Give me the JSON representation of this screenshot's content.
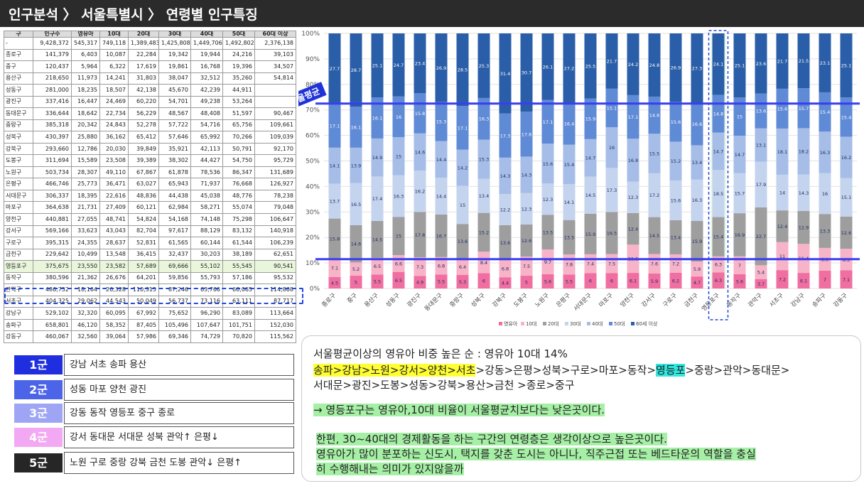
{
  "title": "인구분석 〉 서울특별시 〉 연령별 인구특징",
  "table": {
    "headers": [
      "구",
      "인구수",
      "영유아",
      "10대",
      "20대",
      "30대",
      "40대",
      "50대",
      "60대 이상"
    ],
    "rows": [
      [
        "-",
        "9,428,372",
        "545,317",
        "749,118",
        "1,389,483",
        "1,425,808",
        "1,449,706",
        "1,492,802",
        "2,376,138"
      ],
      [
        "종로구",
        "141,379",
        "6,403",
        "10,087",
        "22,284",
        "19,342",
        "19,944",
        "24,216",
        "39,103"
      ],
      [
        "중구",
        "120,437",
        "5,964",
        "6,322",
        "17,619",
        "19,861",
        "16,768",
        "19,396",
        "34,507"
      ],
      [
        "용산구",
        "218,650",
        "11,973",
        "14,241",
        "31,803",
        "38,047",
        "32,512",
        "35,260",
        "54,814"
      ],
      [
        "성동구",
        "281,000",
        "18,235",
        "18,507",
        "42,138",
        "45,670",
        "42,239",
        "44,911",
        ""
      ],
      [
        "광진구",
        "337,416",
        "16,447",
        "24,469",
        "60,220",
        "54,701",
        "49,238",
        "53,264",
        ""
      ],
      [
        "동대문구",
        "336,644",
        "18,642",
        "22,734",
        "56,229",
        "48,567",
        "48,408",
        "51,597",
        "90,467"
      ],
      [
        "중랑구",
        "385,318",
        "20,342",
        "24,843",
        "52,278",
        "57,722",
        "54,716",
        "65,756",
        "109,661"
      ],
      [
        "성북구",
        "430,397",
        "25,880",
        "36,162",
        "65,412",
        "57,646",
        "65,992",
        "70,266",
        "109,039"
      ],
      [
        "강북구",
        "293,660",
        "12,786",
        "20,030",
        "39,849",
        "35,921",
        "42,113",
        "50,791",
        "92,170"
      ],
      [
        "도봉구",
        "311,694",
        "15,589",
        "23,508",
        "39,389",
        "38,302",
        "44,427",
        "54,750",
        "95,729"
      ],
      [
        "노원구",
        "503,734",
        "28,307",
        "49,110",
        "67,867",
        "61,878",
        "78,536",
        "86,347",
        "131,689"
      ],
      [
        "은평구",
        "466,746",
        "25,773",
        "36,471",
        "63,027",
        "65,943",
        "71,937",
        "76,668",
        "126,927"
      ],
      [
        "서대문구",
        "306,337",
        "18,395",
        "22,616",
        "48,836",
        "44,438",
        "45,038",
        "48,776",
        "78,238"
      ],
      [
        "마포구",
        "364,638",
        "21,731",
        "27,409",
        "60,121",
        "62,984",
        "58,271",
        "55,074",
        "79,048"
      ],
      [
        "양천구",
        "440,881",
        "27,055",
        "48,741",
        "54,824",
        "54,168",
        "74,148",
        "75,298",
        "106,647"
      ],
      [
        "강서구",
        "569,166",
        "33,623",
        "43,043",
        "82,704",
        "97,617",
        "88,129",
        "83,132",
        "140,918"
      ],
      [
        "구로구",
        "395,315",
        "24,355",
        "28,637",
        "52,831",
        "61,565",
        "60,144",
        "61,544",
        "106,239"
      ],
      [
        "금천구",
        "229,642",
        "10,499",
        "13,548",
        "36,415",
        "32,437",
        "30,203",
        "38,189",
        "62,651"
      ],
      [
        "영등포구",
        "375,675",
        "23,550",
        "23,582",
        "57,689",
        "69,666",
        "55,102",
        "55,545",
        "90,541"
      ],
      [
        "동작구",
        "380,596",
        "21,362",
        "26,676",
        "64,201",
        "59,856",
        "55,793",
        "57,186",
        "95,532"
      ],
      [
        "관악구",
        "486,752",
        "18,164",
        "26,328",
        "110,315",
        "87,246",
        "63,766",
        "66,065",
        "114,868"
      ],
      [
        "서초구",
        "404,325",
        "29,062",
        "44,543",
        "50,049",
        "56,737",
        "73,116",
        "63,111",
        "87,717"
      ],
      [
        "강남구",
        "529,102",
        "32,320",
        "60,095",
        "67,992",
        "75,652",
        "96,290",
        "83,089",
        "113,664"
      ],
      [
        "송파구",
        "658,801",
        "46,120",
        "58,352",
        "87,405",
        "105,496",
        "107,647",
        "101,751",
        "152,030"
      ],
      [
        "강동구",
        "460,067",
        "32,560",
        "39,064",
        "57,986",
        "69,346",
        "74,729",
        "70,820",
        "115,562"
      ]
    ]
  },
  "groups": [
    {
      "badge": "1군",
      "color": "#1f2fe0",
      "desc": "강남 서초 송파 용산"
    },
    {
      "badge": "2군",
      "color": "#4b64e8",
      "desc": "성동 마포 양천 광진"
    },
    {
      "badge": "3군",
      "color": "#9fa5f5",
      "desc": "강동 동작 영등포 중구 종로"
    },
    {
      "badge": "4군",
      "color": "#f3a8f3",
      "desc": "강서 동대문 서대문 성북 관악↑ 은평↓"
    },
    {
      "badge": "5군",
      "color": "#262626",
      "desc": "노원 구로 중랑 강북 금천 도봉 관악↓ 은평↑"
    }
  ],
  "chart_data": {
    "type": "bar",
    "stacked": true,
    "categories": [
      "종로구",
      "중구",
      "용산구",
      "성동구",
      "광진구",
      "동대문구",
      "중랑구",
      "성북구",
      "강북구",
      "도봉구",
      "노원구",
      "은평구",
      "서대문구",
      "마포구",
      "양천구",
      "강서구",
      "구로구",
      "금천구",
      "영등포구",
      "동작구",
      "관악구",
      "서초구",
      "강남구",
      "송파구",
      "강동구"
    ],
    "series": [
      {
        "name": "영유아",
        "color": "#f06ea0",
        "values": [
          4.5,
          5.0,
          5.5,
          6.5,
          4.9,
          5.5,
          5.3,
          6.0,
          4.4,
          5.0,
          5.6,
          5.5,
          6.0,
          6.0,
          6.1,
          5.9,
          6.2,
          4.7,
          6.3,
          5.6,
          3.7,
          7.2,
          6.1,
          7.0,
          7.1
        ]
      },
      {
        "name": "10대",
        "color": "#f7b3c8",
        "values": [
          7.1,
          5.2,
          6.5,
          6.6,
          7.3,
          6.8,
          6.4,
          8.4,
          6.8,
          7.5,
          9.7,
          7.8,
          7.4,
          7.5,
          11.1,
          7.6,
          7.2,
          5.9,
          6.3,
          7.0,
          5.4,
          11.0,
          11.4,
          8.9,
          8.5
        ]
      },
      {
        "name": "20대",
        "color": "#9e9e9e",
        "values": [
          15.8,
          14.6,
          14.5,
          15.0,
          17.8,
          16.7,
          13.6,
          15.2,
          13.6,
          12.6,
          13.5,
          13.5,
          15.9,
          16.5,
          12.4,
          14.5,
          13.4,
          15.9,
          15.4,
          16.9,
          22.7,
          12.4,
          12.9,
          13.3,
          12.6
        ]
      },
      {
        "name": "30대",
        "color": "#c4d3ee",
        "values": [
          13.7,
          16.5,
          17.4,
          16.3,
          16.2,
          14.4,
          15.0,
          13.4,
          12.2,
          12.3,
          12.3,
          14.1,
          14.5,
          17.3,
          12.3,
          17.2,
          15.6,
          16.3,
          18.5,
          15.7,
          17.9,
          14.0,
          14.3,
          16.0,
          15.1
        ]
      },
      {
        "name": "40대",
        "color": "#a6bde8",
        "values": [
          14.1,
          13.9,
          14.9,
          15.0,
          14.6,
          14.4,
          14.2,
          15.3,
          14.3,
          14.3,
          15.6,
          15.4,
          14.7,
          16.0,
          16.8,
          15.5,
          15.2,
          13.4,
          14.7,
          14.7,
          13.1,
          18.1,
          18.2,
          16.3,
          16.2
        ]
      },
      {
        "name": "50대",
        "color": "#5f8ad6",
        "values": [
          17.1,
          16.1,
          16.1,
          16.0,
          15.8,
          15.3,
          17.1,
          16.3,
          17.3,
          17.6,
          17.1,
          16.4,
          15.9,
          15.1,
          17.1,
          14.6,
          15.6,
          16.6,
          14.8,
          15.0,
          13.6,
          15.6,
          15.7,
          15.4,
          15.4
        ]
      },
      {
        "name": "60세 이상",
        "color": "#2a5ea8",
        "values": [
          27.7,
          28.7,
          25.1,
          24.7,
          23.4,
          26.9,
          28.5,
          25.3,
          31.4,
          30.7,
          26.1,
          27.2,
          25.5,
          21.7,
          24.2,
          24.8,
          26.9,
          27.3,
          24.1,
          25.1,
          23.6,
          21.7,
          21.5,
          23.1,
          25.1
        ]
      }
    ],
    "yticks": [
      "0%",
      "10%",
      "20%",
      "30%",
      "40%",
      "50%",
      "60%",
      "70%",
      "80%",
      "90%",
      "100%"
    ],
    "ylim": [
      0,
      100
    ],
    "reference_lines": [
      11.5,
      72.5
    ],
    "reference_label": "서울평균",
    "highlight_category": "영등포구",
    "legend_position": "bottom"
  },
  "commentary": {
    "line1": "서울평균이상의 영유아 비중 높은 순 : 영유아 10대 14%",
    "line2_highlight": "송파>강남>노원>강서>양천>서초",
    "line2_mid": ">강동>은평>성북>구로>마포>동작>",
    "line2_cyan": "영등포",
    "line2_end": ">중랑>관악>동대문>",
    "line3": "서대문>광진>도봉>성동>강북>용산>금천 >종로>중구",
    "line4": "→ 영등포구는 영유아,10대 비율이 서울평균치보다는 낮은곳이다.",
    "line5": "한편, 30~40대의 경제활동을 하는 구간의 연령층은 생각이상으로 높은곳이다.",
    "line6": "영유아가 많이 분포하는 신도시, 택지를 갖춘 도시는 아니나, 직주근접 또는 베드타운의 역할을 충실",
    "line7": "히 수행해내는 의미가 있지않을까"
  }
}
